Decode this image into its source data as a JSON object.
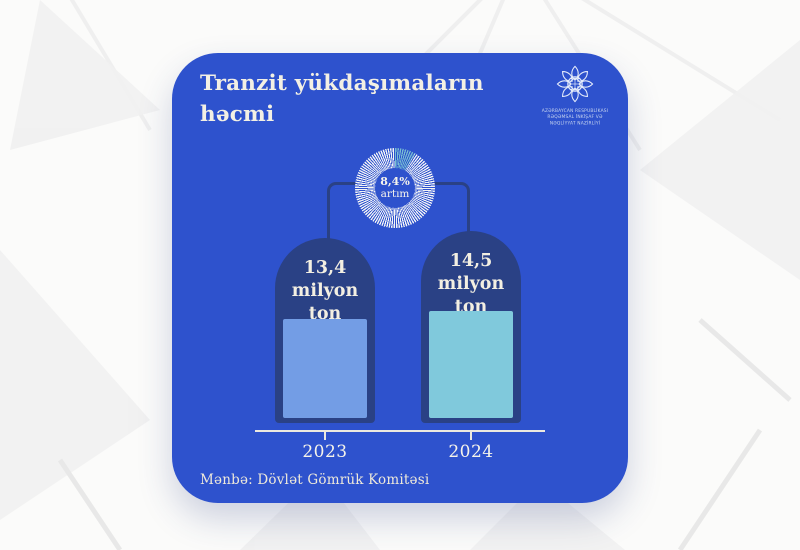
{
  "card": {
    "title": "Tranzit yükdaşımaların həcmi",
    "source": "Mənbə: Dövlət Gömrük Komitəsi",
    "background_color": "#2e52cd"
  },
  "logo": {
    "org_lines": [
      "AZƏRBAYCAN RESPUBLİKASI",
      "RƏQƏMSAL İNKİŞAF VƏ",
      "NƏQLİYYAT NAZİRLİYİ"
    ]
  },
  "chart_data": {
    "type": "bar",
    "title": "Tranzit yükdaşımaların həcmi",
    "categories": [
      "2023",
      "2024"
    ],
    "values": [
      13.4,
      14.5
    ],
    "unit": "milyon ton",
    "bars": [
      {
        "year": "2023",
        "label_lines": [
          "13,4",
          "milyon",
          "ton"
        ],
        "color": "#739de5"
      },
      {
        "year": "2024",
        "label_lines": [
          "14,5",
          "milyon",
          "ton"
        ],
        "color": "#80c9dc"
      }
    ],
    "growth": {
      "percent": "8,4%",
      "label": "artım",
      "fraction": 0.084,
      "color": "#77bed2"
    },
    "colors": {
      "bar_shell": "#2a4185",
      "axis": "#ece9df",
      "donut_ring": "#f3f4f6"
    },
    "legend": "none",
    "grid": "off"
  }
}
